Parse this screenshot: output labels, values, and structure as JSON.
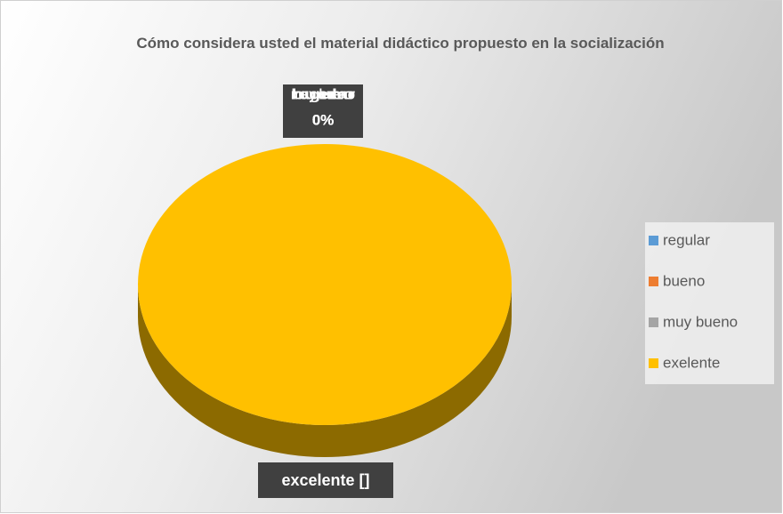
{
  "chart_data": {
    "type": "pie",
    "title": "Cómo considera usted el material didáctico propuesto en la socialización",
    "categories": [
      "regular",
      "bueno",
      "muy bueno",
      "exelente"
    ],
    "values": [
      0,
      0,
      0,
      100
    ],
    "value_labels": [
      "0%",
      "0%",
      "0%",
      "excelente []"
    ],
    "colors": [
      "#5b9bd5",
      "#ed7d31",
      "#a5a5a5",
      "#ffc000"
    ],
    "legend": "right"
  }
}
